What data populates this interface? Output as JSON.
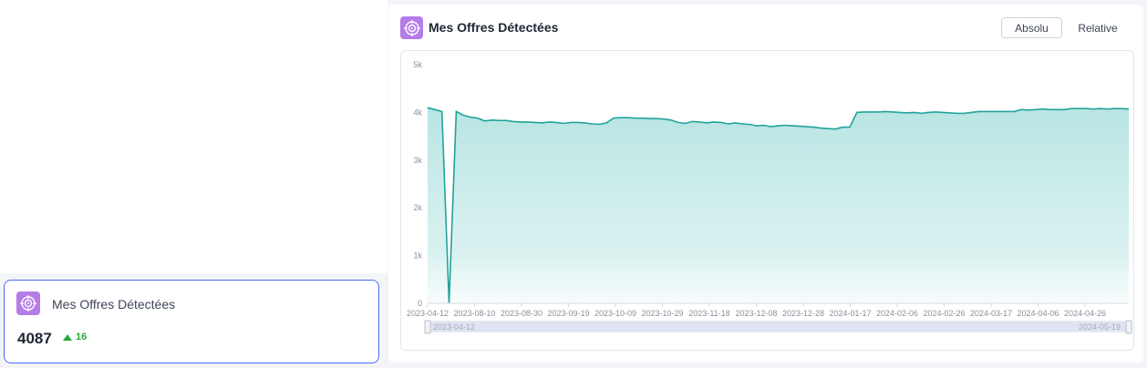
{
  "kpi": {
    "title": "Mes Offres Détectées",
    "value": "4087",
    "delta": "16",
    "icon": "target-icon"
  },
  "chart_card": {
    "title": "Mes Offres Détectées",
    "icon": "target-icon",
    "btn_absolute": "Absolu",
    "btn_relative": "Relative"
  },
  "colors": {
    "accent": "#4a6cf7",
    "line": "#22a39a",
    "area": "#b4e3e1",
    "icon_bg": "#b57ce8",
    "positive": "#2aa63a"
  },
  "chart_data": {
    "type": "area",
    "title": "",
    "xlabel": "",
    "ylabel": "",
    "ylim": [
      0,
      5000
    ],
    "y_ticks": [
      "0",
      "1k",
      "2k",
      "3k",
      "4k",
      "5k"
    ],
    "x_ticks": [
      "2023-04-12",
      "2023-08-10",
      "2023-08-30",
      "2023-09-19",
      "2023-10-09",
      "2023-10-29",
      "2023-11-18",
      "2023-12-08",
      "2023-12-28",
      "2024-01-17",
      "2024-02-06",
      "2024-02-26",
      "2024-03-17",
      "2024-04-06",
      "2024-04-26"
    ],
    "grid": false,
    "slider": {
      "start": "2023-04-12",
      "end": "2024-05-19"
    },
    "series": [
      {
        "values": [
          4100,
          4060,
          4020,
          0,
          4020,
          3940,
          3900,
          3880,
          3820,
          3840,
          3830,
          3830,
          3810,
          3800,
          3800,
          3790,
          3780,
          3800,
          3790,
          3770,
          3790,
          3790,
          3780,
          3760,
          3750,
          3780,
          3880,
          3890,
          3890,
          3880,
          3880,
          3870,
          3870,
          3860,
          3840,
          3790,
          3770,
          3810,
          3800,
          3780,
          3800,
          3790,
          3760,
          3780,
          3760,
          3750,
          3720,
          3730,
          3700,
          3720,
          3730,
          3720,
          3710,
          3700,
          3690,
          3670,
          3660,
          3650,
          3690,
          3690,
          4000,
          4010,
          4010,
          4010,
          4020,
          4010,
          4000,
          3990,
          4000,
          3980,
          4000,
          4010,
          4000,
          3990,
          3980,
          3980,
          4000,
          4020,
          4020,
          4020,
          4020,
          4020,
          4020,
          4060,
          4050,
          4060,
          4070,
          4060,
          4060,
          4060,
          4080,
          4080,
          4080,
          4070,
          4080,
          4070,
          4080,
          4080,
          4070
        ]
      }
    ]
  }
}
